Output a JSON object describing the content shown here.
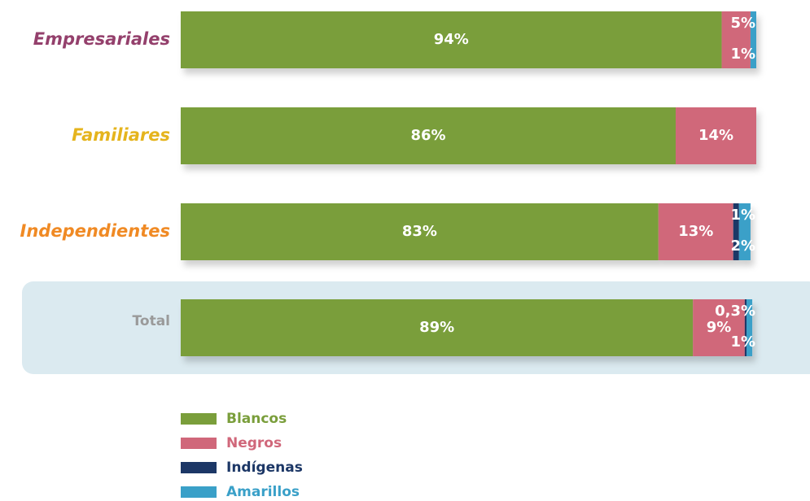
{
  "chart_data": {
    "type": "stacked-bar-horizontal",
    "categories": [
      "Empresariales",
      "Familiares",
      "Independientes",
      "Total"
    ],
    "category_colors": [
      "#94406c",
      "#e5b41d",
      "#f08a24",
      "#9a9a9a"
    ],
    "highlight_index": 3,
    "xlim": [
      0,
      100
    ],
    "series": [
      {
        "name": "Blancos",
        "color": "#7a9e3b",
        "values": [
          94,
          86,
          83,
          89
        ],
        "value_labels": [
          "94%",
          "86%",
          "83%",
          "89%"
        ]
      },
      {
        "name": "Negros",
        "color": "#d0677a",
        "values": [
          5,
          14,
          13,
          9
        ],
        "value_labels": [
          "5%",
          "14%",
          "13%",
          "9%"
        ]
      },
      {
        "name": "Indígenas",
        "color": "#1c3766",
        "values": [
          null,
          null,
          1,
          0.3
        ],
        "value_labels": [
          null,
          null,
          "1%",
          "0,3%"
        ]
      },
      {
        "name": "Amarillos",
        "color": "#3aa0c8",
        "values": [
          1,
          null,
          2,
          1
        ],
        "value_labels": [
          "1%",
          null,
          "2%",
          "1%"
        ]
      }
    ],
    "legend": "bottom-left"
  }
}
